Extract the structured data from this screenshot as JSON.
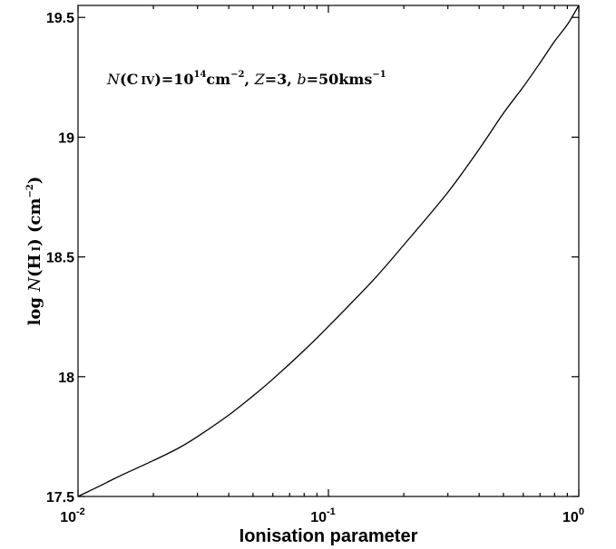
{
  "chart_data": {
    "type": "line",
    "xscale": "log",
    "xlim": [
      0.01,
      1
    ],
    "ylim": [
      17.5,
      19.55
    ],
    "grid": false,
    "x_ticks": [
      {
        "base": "10",
        "exp": "-2"
      },
      {
        "base": "10",
        "exp": "-1"
      },
      {
        "base": "10",
        "exp": "0"
      }
    ],
    "y_ticks": [
      "17.5",
      "18",
      "18.5",
      "19",
      "19.5"
    ],
    "xlabel": "Ionisation parameter",
    "ylabel": {
      "prefix": "log",
      "var": "N",
      "open": "(",
      "elem": "H",
      "ion": "I",
      "close": ")",
      "units_open": "(cm",
      "units_exp": "−2",
      "units_close": ")"
    },
    "annotation": {
      "n_var": "N",
      "n_open": "(",
      "n_elem": "C",
      "n_ion": "IV",
      "n_close": ")",
      "n_eq": "=10",
      "n_exp": "14",
      "n_unit": "cm",
      "n_unit_exp": "−2",
      "z_sep": ", ",
      "z_var": "Z",
      "z_eq": "=3",
      "b_sep": ", ",
      "b_var": "b",
      "b_eq": "=50kms",
      "b_exp": "−1"
    },
    "series": [
      {
        "x": [
          0.01,
          0.012,
          0.015,
          0.02,
          0.025,
          0.03,
          0.04,
          0.05,
          0.06,
          0.08,
          0.1,
          0.15,
          0.2,
          0.3,
          0.4,
          0.5,
          0.6,
          0.7,
          0.8,
          0.9,
          1.0
        ],
        "y": [
          17.5,
          17.54,
          17.59,
          17.65,
          17.7,
          17.75,
          17.84,
          17.92,
          17.99,
          18.11,
          18.21,
          18.4,
          18.55,
          18.77,
          18.95,
          19.1,
          19.21,
          19.31,
          19.4,
          19.47,
          19.55
        ]
      }
    ]
  }
}
